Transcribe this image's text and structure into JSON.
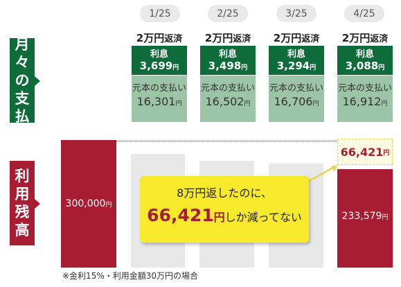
{
  "months": [
    "1/25",
    "2/25",
    "3/25",
    "4/25"
  ],
  "repay": {
    "amount": "2万円",
    "suffix": "返済"
  },
  "interest_label": "利息",
  "interest_values": [
    "3,699",
    "3,498",
    "3,294",
    "3,088"
  ],
  "principal_label": "元本の支払い",
  "principal_values": [
    "16,301",
    "16,502",
    "16,706",
    "16,912"
  ],
  "yen": "円",
  "side_labels": {
    "monthly": [
      "月",
      "々",
      "の",
      "支",
      "払"
    ],
    "balance": [
      "利",
      "用",
      "残",
      "高"
    ]
  },
  "balance_start": "300,000",
  "balance_end": "233,579",
  "reduced": "66,421",
  "callout": {
    "line1": "8万円返したのに、",
    "num": "66,421",
    "yen": "円",
    "tail": "しか減ってない"
  },
  "note": "※金利15%・利用金額30万円の場合",
  "colors": {
    "green": "#0e6b3a",
    "light_green": "#9cc4a7",
    "red": "#a81d32",
    "gray": "#e8e8e8",
    "yellow": "#f6ea2a"
  }
}
